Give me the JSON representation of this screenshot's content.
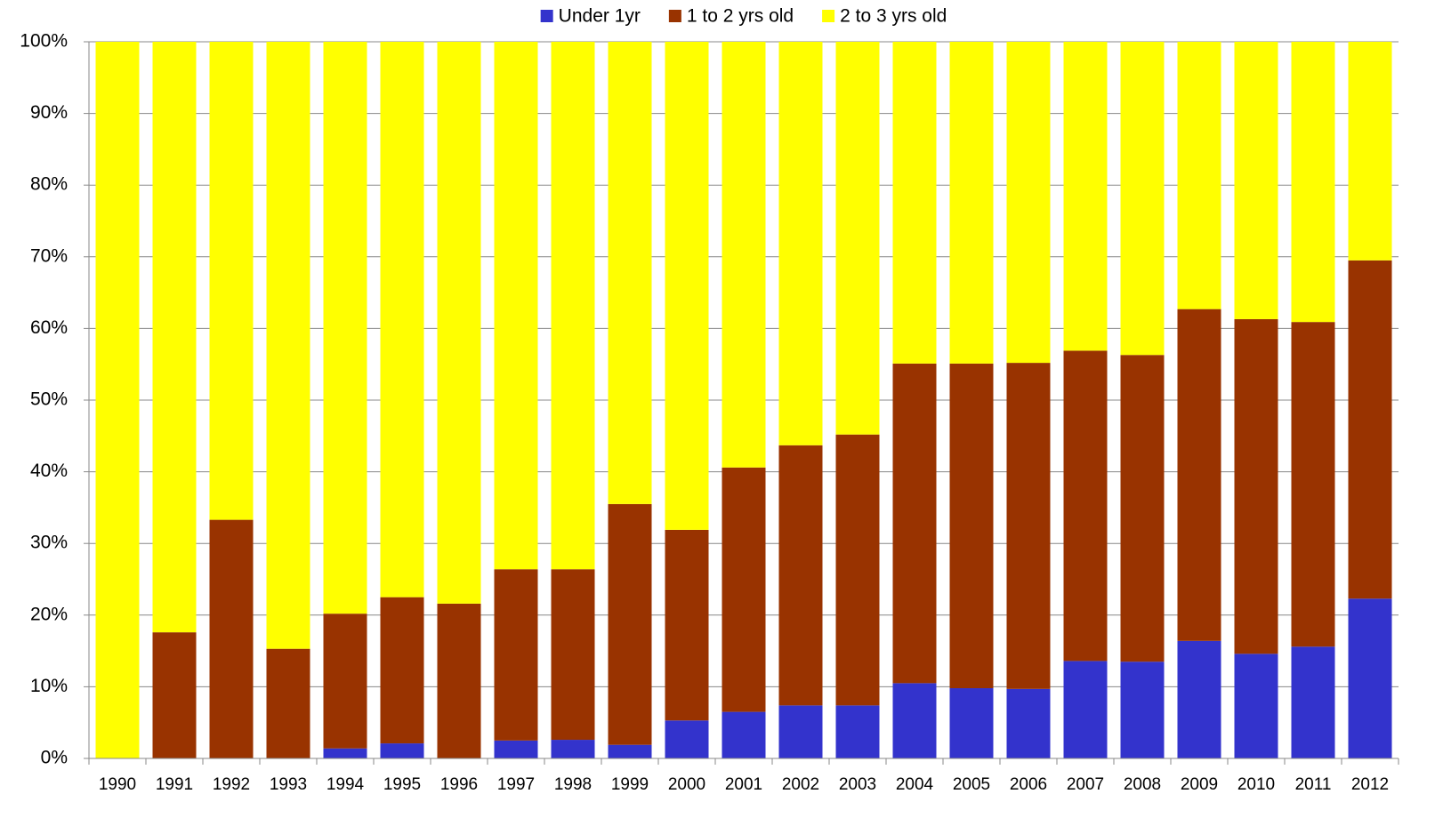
{
  "chart_data": {
    "type": "stacked_bar",
    "categories": [
      "1990",
      "1991",
      "1992",
      "1993",
      "1994",
      "1995",
      "1996",
      "1997",
      "1998",
      "1999",
      "2000",
      "2001",
      "2002",
      "2003",
      "2004",
      "2005",
      "2006",
      "2007",
      "2008",
      "2009",
      "2010",
      "2011",
      "2012"
    ],
    "series": [
      {
        "name": "Under 1yr",
        "color": "#3333cc",
        "values": [
          0,
          0,
          0,
          0,
          1.4,
          2.1,
          0,
          2.5,
          2.6,
          1.9,
          5.3,
          6.5,
          7.4,
          7.4,
          10.5,
          9.8,
          9.7,
          13.6,
          13.5,
          16.4,
          14.6,
          15.6,
          22.3
        ]
      },
      {
        "name": "1 to 2 yrs old",
        "color": "#993300",
        "values": [
          0,
          17.6,
          33.3,
          15.3,
          18.8,
          20.4,
          21.6,
          23.9,
          23.8,
          33.6,
          26.6,
          34.1,
          36.3,
          37.8,
          44.6,
          45.3,
          45.5,
          43.3,
          42.8,
          46.3,
          46.7,
          45.3,
          47.2
        ]
      },
      {
        "name": "2 to 3 yrs old",
        "color": "#ffff00",
        "values": [
          100,
          82.4,
          66.7,
          84.7,
          79.8,
          77.5,
          78.4,
          73.6,
          73.6,
          64.5,
          68.1,
          59.4,
          56.3,
          54.8,
          44.9,
          44.9,
          44.8,
          43.1,
          43.7,
          37.3,
          38.7,
          39.1,
          30.5
        ]
      }
    ],
    "ylim": [
      0,
      100
    ],
    "yticks": [
      {
        "value": 0,
        "label": "0%"
      },
      {
        "value": 10,
        "label": "10%"
      },
      {
        "value": 20,
        "label": "20%"
      },
      {
        "value": 30,
        "label": "30%"
      },
      {
        "value": 40,
        "label": "40%"
      },
      {
        "value": 50,
        "label": "50%"
      },
      {
        "value": 60,
        "label": "60%"
      },
      {
        "value": 70,
        "label": "70%"
      },
      {
        "value": 80,
        "label": "80%"
      },
      {
        "value": 90,
        "label": "90%"
      },
      {
        "value": 100,
        "label": "100%"
      }
    ],
    "grid": true,
    "legend": "top"
  }
}
